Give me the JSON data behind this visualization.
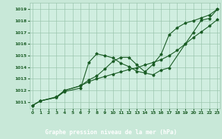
{
  "title": "Graphe pression niveau de la mer (hPa)",
  "bg_color": "#c8e8d8",
  "plot_bg": "#d0eee0",
  "grid_color": "#98c4ac",
  "line_color": "#1a5c25",
  "xlabel_bg": "#2a6b35",
  "xlabel_fg": "#ffffff",
  "xlim": [
    -0.3,
    23.3
  ],
  "ylim": [
    1010.45,
    1019.55
  ],
  "xticks": [
    0,
    1,
    2,
    3,
    4,
    5,
    6,
    7,
    8,
    9,
    10,
    11,
    12,
    13,
    14,
    15,
    16,
    17,
    18,
    19,
    20,
    21,
    22,
    23
  ],
  "yticks": [
    1011,
    1012,
    1013,
    1014,
    1015,
    1016,
    1017,
    1018,
    1019
  ],
  "curve1_x": [
    0,
    1,
    3,
    4,
    6,
    7,
    8,
    9,
    10,
    11,
    12,
    13,
    14,
    15,
    16,
    17,
    19,
    20,
    21,
    22,
    23
  ],
  "curve1_y": [
    1010.7,
    1011.1,
    1011.4,
    1011.9,
    1012.2,
    1014.4,
    1015.15,
    1015.0,
    1014.8,
    1014.35,
    1014.05,
    1013.65,
    1013.5,
    1013.35,
    1013.75,
    1013.95,
    1016.0,
    1017.0,
    1018.05,
    1018.2,
    1019.0
  ],
  "curve2_x": [
    0,
    1,
    3,
    4,
    6,
    7,
    8,
    9,
    10,
    11,
    12,
    13,
    14,
    15,
    16,
    17,
    18,
    19,
    20,
    21,
    22,
    23
  ],
  "curve2_y": [
    1010.7,
    1011.1,
    1011.4,
    1012.0,
    1012.4,
    1012.9,
    1013.25,
    1013.85,
    1014.5,
    1014.85,
    1014.85,
    1014.2,
    1013.6,
    1014.25,
    1015.1,
    1016.8,
    1017.4,
    1017.8,
    1018.0,
    1018.25,
    1018.5,
    1019.0
  ],
  "curve3_x": [
    0,
    1,
    3,
    4,
    6,
    7,
    8,
    9,
    10,
    11,
    12,
    13,
    14,
    15,
    16,
    17,
    18,
    19,
    20,
    21,
    22,
    23
  ],
  "curve3_y": [
    1010.7,
    1011.1,
    1011.45,
    1012.0,
    1012.4,
    1012.75,
    1013.0,
    1013.2,
    1013.4,
    1013.6,
    1013.8,
    1013.95,
    1014.2,
    1014.4,
    1014.65,
    1015.0,
    1015.45,
    1016.0,
    1016.55,
    1017.05,
    1017.55,
    1018.1
  ]
}
